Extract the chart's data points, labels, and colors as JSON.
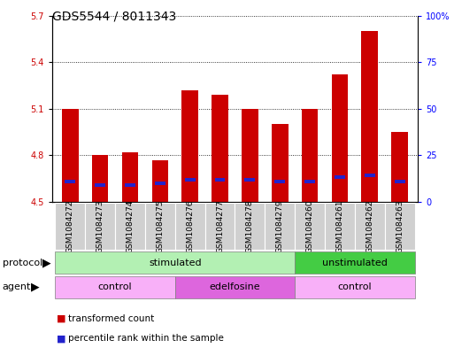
{
  "title": "GDS5544 / 8011343",
  "samples": [
    "GSM1084272",
    "GSM1084273",
    "GSM1084274",
    "GSM1084275",
    "GSM1084276",
    "GSM1084277",
    "GSM1084278",
    "GSM1084279",
    "GSM1084260",
    "GSM1084261",
    "GSM1084262",
    "GSM1084263"
  ],
  "red_values": [
    5.1,
    4.8,
    4.82,
    4.77,
    5.22,
    5.19,
    5.1,
    5.0,
    5.1,
    5.32,
    5.6,
    4.95
  ],
  "blue_values": [
    4.63,
    4.61,
    4.61,
    4.62,
    4.64,
    4.64,
    4.64,
    4.63,
    4.63,
    4.66,
    4.67,
    4.63
  ],
  "ymin": 4.5,
  "ymax": 5.7,
  "yticks_left": [
    4.5,
    4.8,
    5.1,
    5.4,
    5.7
  ],
  "yticks_right_pct": [
    0,
    25,
    50,
    75,
    100
  ],
  "yticks_right_labels": [
    "0",
    "25",
    "50",
    "75",
    "100%"
  ],
  "bar_color_red": "#cc0000",
  "bar_color_blue": "#2222cc",
  "bar_width": 0.55,
  "blue_bar_width": 0.35,
  "blue_bar_height": 0.022,
  "protocol_color_stim": "#b3f0b3",
  "protocol_color_unstim": "#44cc44",
  "agent_color_light": "#f8b0f8",
  "agent_color_dark": "#dd66dd",
  "legend_red": "transformed count",
  "legend_blue": "percentile rank within the sample",
  "sample_bg": "#d0d0d0",
  "title_fontsize": 10,
  "tick_fontsize": 7,
  "label_fontsize": 8
}
